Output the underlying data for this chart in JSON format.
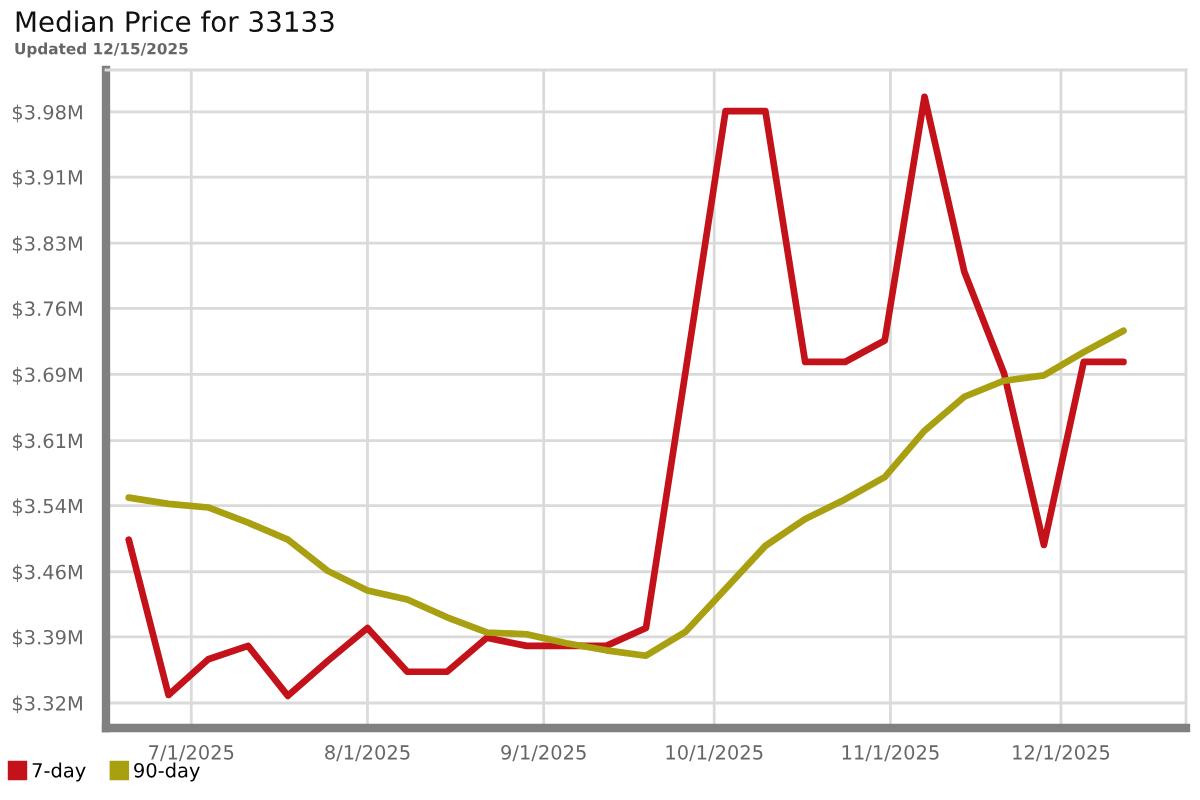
{
  "chart_data": {
    "type": "line",
    "title": "Median Price for 33133",
    "subtitle": "Updated 12/15/2025",
    "x": [
      "2025-06-20",
      "2025-06-27",
      "2025-07-04",
      "2025-07-11",
      "2025-07-18",
      "2025-07-25",
      "2025-08-01",
      "2025-08-08",
      "2025-08-15",
      "2025-08-22",
      "2025-08-29",
      "2025-09-05",
      "2025-09-12",
      "2025-09-19",
      "2025-09-26",
      "2025-10-03",
      "2025-10-10",
      "2025-10-17",
      "2025-10-24",
      "2025-10-31",
      "2025-11-07",
      "2025-11-14",
      "2025-11-21",
      "2025-11-28",
      "2025-12-05",
      "2025-12-12"
    ],
    "series": [
      {
        "name": "7-day",
        "color": "#c4121a",
        "values": [
          3.5,
          3.326,
          3.366,
          3.381,
          3.325,
          3.364,
          3.401,
          3.352,
          3.352,
          3.39,
          3.381,
          3.381,
          3.381,
          3.401,
          3.69,
          3.98,
          3.98,
          3.699,
          3.699,
          3.723,
          3.996,
          3.8,
          3.686,
          3.494,
          3.699,
          3.699
        ]
      },
      {
        "name": "90-day",
        "color": "#a8a010",
        "values": [
          3.547,
          3.54,
          3.536,
          3.519,
          3.5,
          3.465,
          3.443,
          3.433,
          3.413,
          3.396,
          3.394,
          3.384,
          3.376,
          3.37,
          3.397,
          3.445,
          3.493,
          3.523,
          3.545,
          3.57,
          3.622,
          3.66,
          3.678,
          3.684,
          3.71,
          3.734
        ]
      }
    ],
    "xlim": [
      "2025-06-16",
      "2025-12-23"
    ],
    "xticks": [
      {
        "value": "2025-07-01",
        "label": "7/1/2025"
      },
      {
        "value": "2025-08-01",
        "label": "8/1/2025"
      },
      {
        "value": "2025-09-01",
        "label": "9/1/2025"
      },
      {
        "value": "2025-10-01",
        "label": "10/1/2025"
      },
      {
        "value": "2025-11-01",
        "label": "11/1/2025"
      },
      {
        "value": "2025-12-01",
        "label": "12/1/2025"
      }
    ],
    "ylim": [
      3.289,
      4.026
    ],
    "yticks": [
      {
        "value": 3.317,
        "label": "$3.32M"
      },
      {
        "value": 3.391,
        "label": "$3.39M"
      },
      {
        "value": 3.464,
        "label": "$3.46M"
      },
      {
        "value": 3.538,
        "label": "$3.54M"
      },
      {
        "value": 3.611,
        "label": "$3.61M"
      },
      {
        "value": 3.685,
        "label": "$3.69M"
      },
      {
        "value": 3.759,
        "label": "$3.76M"
      },
      {
        "value": 3.832,
        "label": "$3.83M"
      },
      {
        "value": 3.906,
        "label": "$3.91M"
      },
      {
        "value": 3.979,
        "label": "$3.98M"
      }
    ],
    "grid": true,
    "legend": "bottom left",
    "marker": "none",
    "line_style": "solid"
  }
}
